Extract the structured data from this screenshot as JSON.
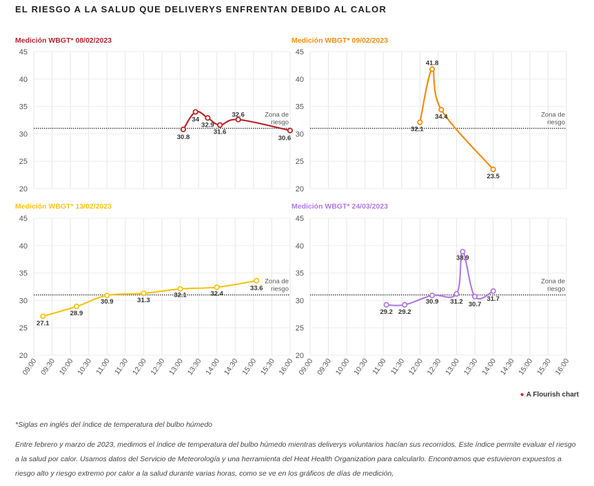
{
  "title": "EL RIESGO A LA SALUD QUE DELIVERYS ENFRENTAN DEBIDO AL CALOR",
  "credit": "A Flourish chart",
  "footnote": "*Siglas en inglés del índice de temperatura del bulbo húmedo",
  "body": "Entre febrero y marzo de 2023, medimos el índice de temperatura del bulbo húmedo mientras deliverys voluntarios hacían sus recorridos. Este índice permite evaluar el riesgo a la salud por calor. Usamos datos del Servicio de Meteorología y una herramienta del Heat Health Organization para calcularlo. Encontramos que estuvieron expuestos a riesgo alto y riesgo extremo por calor a la salud durante varias horas, como se ve en los gráficos de días de medición,",
  "chart_data": [
    {
      "type": "line",
      "title": "Medición WBGT* 08/02/2023",
      "color": "#b5262a",
      "ylim": [
        20,
        45
      ],
      "yticks": [
        20,
        25,
        30,
        35,
        40,
        45
      ],
      "xlim": [
        "09:00",
        "16:00"
      ],
      "xticks": [
        "09:00",
        "09:30",
        "10:00",
        "10:30",
        "11:00",
        "11:30",
        "12:00",
        "12:30",
        "13:00",
        "13:30",
        "14:00",
        "14:30",
        "15:00",
        "15:30",
        "16:00"
      ],
      "risk_threshold": 31,
      "risk_label": [
        "Zona de",
        "riesgo"
      ],
      "x": [
        "13:05",
        "13:25",
        "13:45",
        "14:05",
        "14:35",
        "16:00"
      ],
      "values": [
        30.8,
        34,
        32.9,
        31.6,
        32.6,
        30.6
      ],
      "labels": [
        "30.8",
        "34",
        "32.9",
        "31.6",
        "32.6",
        "30.6"
      ]
    },
    {
      "type": "line",
      "title": "Medición WBGT* 09/02/2023",
      "color": "#f28c0f",
      "ylim": [
        20,
        45
      ],
      "yticks": [
        20,
        25,
        30,
        35,
        40,
        45
      ],
      "xlim": [
        "09:00",
        "16:00"
      ],
      "xticks": [
        "09:00",
        "09:30",
        "10:00",
        "10:30",
        "11:00",
        "11:30",
        "12:00",
        "12:30",
        "13:00",
        "13:30",
        "14:00",
        "14:30",
        "15:00",
        "15:30",
        "16:00"
      ],
      "risk_threshold": 31,
      "risk_label": [
        "Zona de",
        "riesgo"
      ],
      "x": [
        "12:00",
        "12:20",
        "12:35",
        "14:00"
      ],
      "values": [
        32.1,
        41.8,
        34.4,
        23.5
      ],
      "labels": [
        "32.1",
        "41.8",
        "34.4",
        "23.5"
      ]
    },
    {
      "type": "line",
      "title": "Medición WBGT* 13/02/2023",
      "color": "#f7c416",
      "ylim": [
        20,
        45
      ],
      "yticks": [
        20,
        25,
        30,
        35,
        40,
        45
      ],
      "xlim": [
        "09:00",
        "16:00"
      ],
      "xticks": [
        "09:00",
        "09:30",
        "10:00",
        "10:30",
        "11:00",
        "11:30",
        "12:00",
        "12:30",
        "13:00",
        "13:30",
        "14:00",
        "14:30",
        "15:00",
        "15:30",
        "16:00"
      ],
      "risk_threshold": 31,
      "risk_label": [
        "Zona de",
        "riesgo"
      ],
      "x": [
        "09:15",
        "10:10",
        "11:00",
        "12:00",
        "13:00",
        "14:00",
        "15:05"
      ],
      "values": [
        27.1,
        28.9,
        30.9,
        31.3,
        32.1,
        32.4,
        33.6
      ],
      "labels": [
        "27.1",
        "28.9",
        "30.9",
        "31.3",
        "32.1",
        "32.4",
        "33.6"
      ]
    },
    {
      "type": "line",
      "title": "Medición WBGT* 24/03/2023",
      "color": "#b27ae6",
      "ylim": [
        20,
        45
      ],
      "yticks": [
        20,
        25,
        30,
        35,
        40,
        45
      ],
      "xlim": [
        "09:00",
        "16:00"
      ],
      "xticks": [
        "09:00",
        "09:30",
        "10:00",
        "10:30",
        "11:00",
        "11:30",
        "12:00",
        "12:30",
        "13:00",
        "13:30",
        "14:00",
        "14:30",
        "15:00",
        "15:30",
        "16:00"
      ],
      "risk_threshold": 31,
      "risk_label": [
        "Zona de",
        "riesgo"
      ],
      "x": [
        "11:05",
        "11:35",
        "12:20",
        "13:00",
        "13:10",
        "13:30",
        "14:00"
      ],
      "values": [
        29.2,
        29.2,
        30.9,
        31.2,
        38.9,
        30.7,
        31.7
      ],
      "labels": [
        "29.2",
        "29.2",
        "30.9",
        "31.2",
        "38.9",
        "30.7",
        "31.7"
      ]
    }
  ]
}
